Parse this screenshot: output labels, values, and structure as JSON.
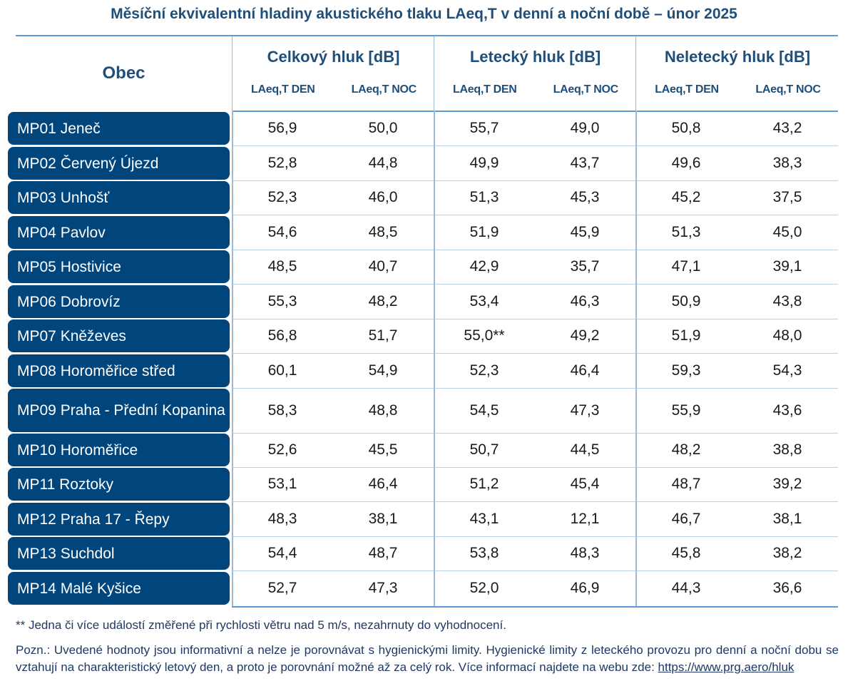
{
  "title": "Měsíční ekvivalentní hladiny akustického tlaku LAeq,T v denní a noční době – únor 2025",
  "header": {
    "obec": "Obec",
    "groups": [
      {
        "label": "Celkový hluk [dB]",
        "den": "LAeq,T DEN",
        "noc": "LAeq,T NOC"
      },
      {
        "label": "Letecký hluk [dB]",
        "den": "LAeq,T DEN",
        "noc": "LAeq,T NOC"
      },
      {
        "label": "Neletecký hluk [dB]",
        "den": "LAeq,T DEN",
        "noc": "LAeq,T NOC"
      }
    ]
  },
  "rows": [
    {
      "name": "MP01 Jeneč",
      "values": [
        "56,9",
        "50,0",
        "55,7",
        "49,0",
        "50,8",
        "43,2"
      ]
    },
    {
      "name": "MP02 Červený Újezd",
      "values": [
        "52,8",
        "44,8",
        "49,9",
        "43,7",
        "49,6",
        "38,3"
      ]
    },
    {
      "name": "MP03 Unhošť",
      "values": [
        "52,3",
        "46,0",
        "51,3",
        "45,3",
        "45,2",
        "37,5"
      ]
    },
    {
      "name": "MP04 Pavlov",
      "values": [
        "54,6",
        "48,5",
        "51,9",
        "45,9",
        "51,3",
        "45,0"
      ]
    },
    {
      "name": "MP05 Hostivice",
      "values": [
        "48,5",
        "40,7",
        "42,9",
        "35,7",
        "47,1",
        "39,1"
      ]
    },
    {
      "name": "MP06 Dobrovíz",
      "values": [
        "55,3",
        "48,2",
        "53,4",
        "46,3",
        "50,9",
        "43,8"
      ]
    },
    {
      "name": "MP07 Kněževes",
      "values": [
        "56,8",
        "51,7",
        "55,0**",
        "49,2",
        "51,9",
        "48,0"
      ]
    },
    {
      "name": "MP08 Horoměřice střed",
      "values": [
        "60,1",
        "54,9",
        "52,3",
        "46,4",
        "59,3",
        "54,3"
      ]
    },
    {
      "name": "MP09 Praha - Přední Kopanina",
      "values": [
        "58,3",
        "48,8",
        "54,5",
        "47,3",
        "55,9",
        "43,6"
      ]
    },
    {
      "name": "MP10 Horoměřice",
      "values": [
        "52,6",
        "45,5",
        "50,7",
        "44,5",
        "48,2",
        "38,8"
      ]
    },
    {
      "name": "MP11 Roztoky",
      "values": [
        "53,1",
        "46,4",
        "51,2",
        "45,4",
        "48,7",
        "39,2"
      ]
    },
    {
      "name": "MP12 Praha 17 - Řepy",
      "values": [
        "48,3",
        "38,1",
        "43,1",
        "12,1",
        "46,7",
        "38,1"
      ]
    },
    {
      "name": "MP13 Suchdol",
      "values": [
        "54,4",
        "48,7",
        "53,8",
        "48,3",
        "45,8",
        "38,2"
      ]
    },
    {
      "name": "MP14 Malé Kyšice",
      "values": [
        "52,7",
        "47,3",
        "52,0",
        "46,9",
        "44,3",
        "36,6"
      ]
    }
  ],
  "notes": {
    "footnote": "**  Jedna či více událostí změřené při rychlosti větru nad 5 m/s, nezahrnuty do vyhodnocení.",
    "pozn": "Pozn.: Uvedené hodnoty jsou informativní a nelze je porovnávat s hygienickými limity. Hygienické limity z leteckého provozu pro denní a noční dobu se vztahují na charakteristický letový den, a proto je porovnání možné až za celý rok. Více informací najdete na webu zde: ",
    "link": "https://www.prg.aero/hluk"
  },
  "colors": {
    "pill": "#00457c",
    "heading": "#1f4e79",
    "rule": "#5b9bd5"
  }
}
